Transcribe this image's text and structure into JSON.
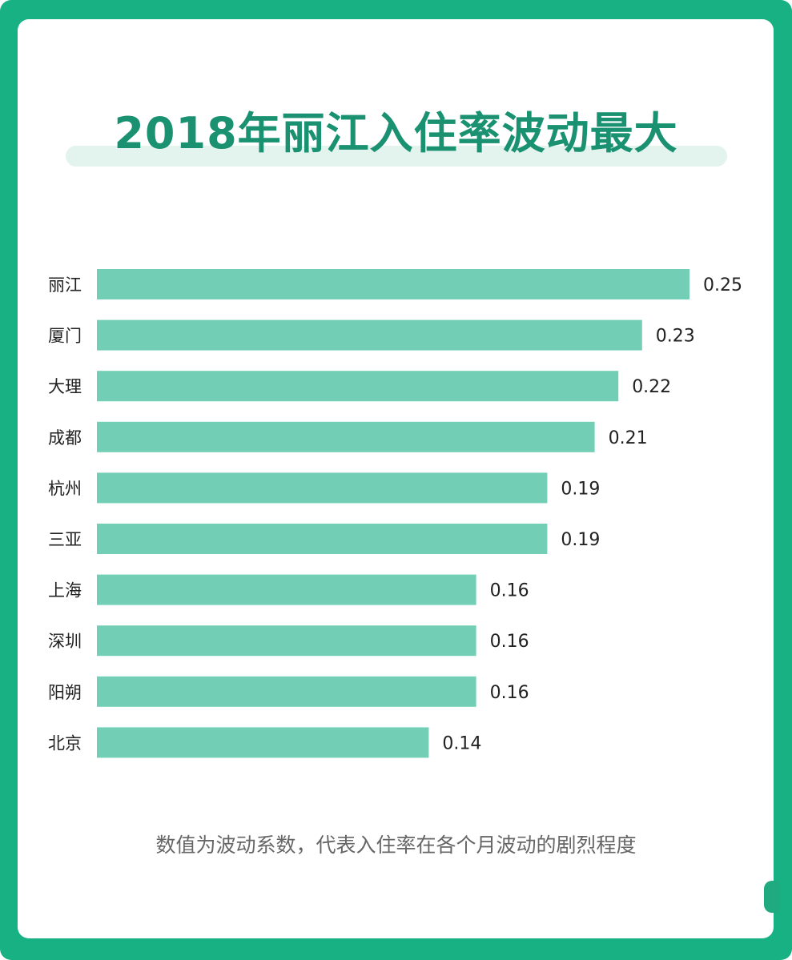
{
  "title": "2018年丽江入住率波动最大",
  "footnote": "数值为波动系数，代表入住率在各个月波动的剧烈程度",
  "colors": {
    "frame": "#17b184",
    "title": "#1a9170",
    "bar": "#72cfb6",
    "label": "#222222",
    "footnote": "#666666"
  },
  "chart_data": {
    "type": "bar",
    "orientation": "horizontal",
    "title": "2018年丽江入住率波动最大",
    "categories": [
      "丽江",
      "厦门",
      "大理",
      "成都",
      "杭州",
      "三亚",
      "上海",
      "深圳",
      "阳朔",
      "北京"
    ],
    "values": [
      0.25,
      0.23,
      0.22,
      0.21,
      0.19,
      0.19,
      0.16,
      0.16,
      0.16,
      0.14
    ],
    "value_labels": [
      "0.25",
      "0.23",
      "0.22",
      "0.21",
      "0.19",
      "0.19",
      "0.16",
      "0.16",
      "0.16",
      "0.14"
    ],
    "xlim": [
      0,
      0.25
    ],
    "grid": false,
    "legend": "none",
    "annotation": "数值为波动系数，代表入住率在各个月波动的剧烈程度"
  }
}
